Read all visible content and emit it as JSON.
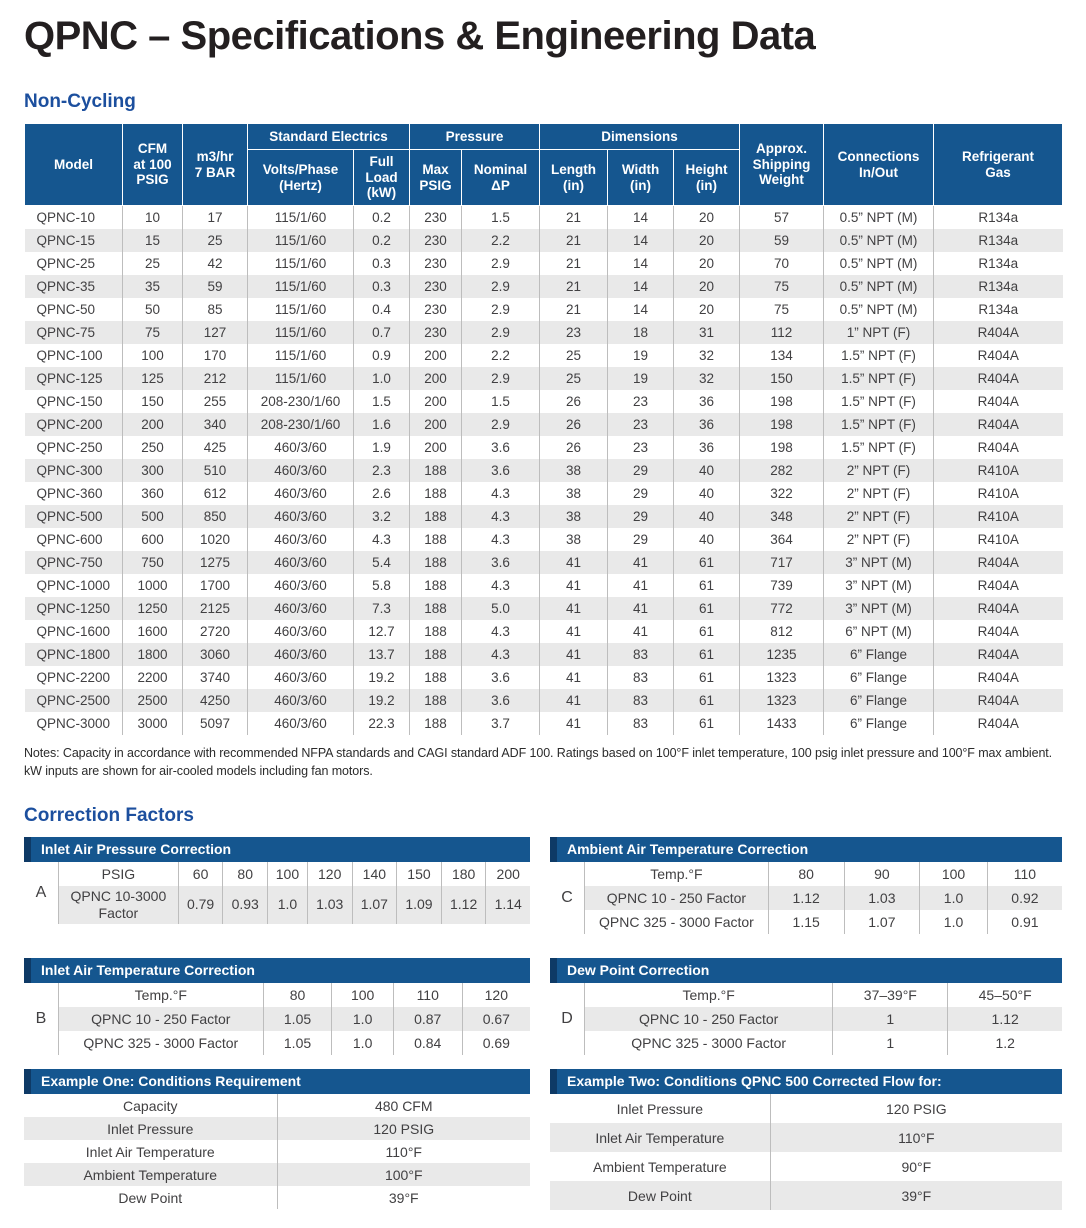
{
  "page": {
    "title": "QPNC – Specifications & Engineering Data",
    "non_cycling_heading": "Non-Cycling",
    "correction_heading": "Correction Factors",
    "notes_line1": "Notes: Capacity in accordance with recommended NFPA standards and CAGI standard ADF 100. Ratings based on 100°F inlet temperature, 100 psig inlet pressure and 100°F max ambient.",
    "notes_line2": "kW inputs are shown for air-cooled models including fan motors."
  },
  "colors": {
    "header_blue": "#15568F",
    "accent_dark_blue": "#0E3A66",
    "heading_blue": "#1C4F9E",
    "stripe_gray": "#E9E9E9",
    "title_color": "#231F20",
    "body_text": "#414042",
    "border_gray": "#BDBDBD"
  },
  "main_table": {
    "group_headers": {
      "electrics": "Standard Electrics",
      "pressure": "Pressure",
      "dimensions": "Dimensions"
    },
    "headers": {
      "model": "Model",
      "cfm": "CFM\nat 100\nPSIG",
      "m3hr": "m3/hr\n7 BAR",
      "volts": "Volts/Phase\n(Hertz)",
      "full_load": "Full\nLoad\n(kW)",
      "max_psig": "Max\nPSIG",
      "nominal_dp": "Nominal\nΔP",
      "length": "Length\n(in)",
      "width": "Width\n(in)",
      "height": "Height\n(in)",
      "shipping": "Approx.\nShipping\nWeight",
      "connections": "Connections\nIn/Out",
      "refrigerant": "Refrigerant\nGas"
    },
    "rows": [
      [
        "QPNC-10",
        "10",
        "17",
        "115/1/60",
        "0.2",
        "230",
        "1.5",
        "21",
        "14",
        "20",
        "57",
        "0.5” NPT (M)",
        "R134a"
      ],
      [
        "QPNC-15",
        "15",
        "25",
        "115/1/60",
        "0.2",
        "230",
        "2.2",
        "21",
        "14",
        "20",
        "59",
        "0.5” NPT (M)",
        "R134a"
      ],
      [
        "QPNC-25",
        "25",
        "42",
        "115/1/60",
        "0.3",
        "230",
        "2.9",
        "21",
        "14",
        "20",
        "70",
        "0.5” NPT (M)",
        "R134a"
      ],
      [
        "QPNC-35",
        "35",
        "59",
        "115/1/60",
        "0.3",
        "230",
        "2.9",
        "21",
        "14",
        "20",
        "75",
        "0.5” NPT (M)",
        "R134a"
      ],
      [
        "QPNC-50",
        "50",
        "85",
        "115/1/60",
        "0.4",
        "230",
        "2.9",
        "21",
        "14",
        "20",
        "75",
        "0.5” NPT (M)",
        "R134a"
      ],
      [
        "QPNC-75",
        "75",
        "127",
        "115/1/60",
        "0.7",
        "230",
        "2.9",
        "23",
        "18",
        "31",
        "112",
        "1” NPT (F)",
        "R404A"
      ],
      [
        "QPNC-100",
        "100",
        "170",
        "115/1/60",
        "0.9",
        "200",
        "2.2",
        "25",
        "19",
        "32",
        "134",
        "1.5” NPT (F)",
        "R404A"
      ],
      [
        "QPNC-125",
        "125",
        "212",
        "115/1/60",
        "1.0",
        "200",
        "2.9",
        "25",
        "19",
        "32",
        "150",
        "1.5” NPT (F)",
        "R404A"
      ],
      [
        "QPNC-150",
        "150",
        "255",
        "208-230/1/60",
        "1.5",
        "200",
        "1.5",
        "26",
        "23",
        "36",
        "198",
        "1.5” NPT (F)",
        "R404A"
      ],
      [
        "QPNC-200",
        "200",
        "340",
        "208-230/1/60",
        "1.6",
        "200",
        "2.9",
        "26",
        "23",
        "36",
        "198",
        "1.5” NPT (F)",
        "R404A"
      ],
      [
        "QPNC-250",
        "250",
        "425",
        "460/3/60",
        "1.9",
        "200",
        "3.6",
        "26",
        "23",
        "36",
        "198",
        "1.5” NPT (F)",
        "R404A"
      ],
      [
        "QPNC-300",
        "300",
        "510",
        "460/3/60",
        "2.3",
        "188",
        "3.6",
        "38",
        "29",
        "40",
        "282",
        "2” NPT (F)",
        "R410A"
      ],
      [
        "QPNC-360",
        "360",
        "612",
        "460/3/60",
        "2.6",
        "188",
        "4.3",
        "38",
        "29",
        "40",
        "322",
        "2” NPT (F)",
        "R410A"
      ],
      [
        "QPNC-500",
        "500",
        "850",
        "460/3/60",
        "3.2",
        "188",
        "4.3",
        "38",
        "29",
        "40",
        "348",
        "2” NPT (F)",
        "R410A"
      ],
      [
        "QPNC-600",
        "600",
        "1020",
        "460/3/60",
        "4.3",
        "188",
        "4.3",
        "38",
        "29",
        "40",
        "364",
        "2” NPT (F)",
        "R410A"
      ],
      [
        "QPNC-750",
        "750",
        "1275",
        "460/3/60",
        "5.4",
        "188",
        "3.6",
        "41",
        "41",
        "61",
        "717",
        "3” NPT (M)",
        "R404A"
      ],
      [
        "QPNC-1000",
        "1000",
        "1700",
        "460/3/60",
        "5.8",
        "188",
        "4.3",
        "41",
        "41",
        "61",
        "739",
        "3” NPT (M)",
        "R404A"
      ],
      [
        "QPNC-1250",
        "1250",
        "2125",
        "460/3/60",
        "7.3",
        "188",
        "5.0",
        "41",
        "41",
        "61",
        "772",
        "3” NPT (M)",
        "R404A"
      ],
      [
        "QPNC-1600",
        "1600",
        "2720",
        "460/3/60",
        "12.7",
        "188",
        "4.3",
        "41",
        "41",
        "61",
        "812",
        "6” NPT (M)",
        "R404A"
      ],
      [
        "QPNC-1800",
        "1800",
        "3060",
        "460/3/60",
        "13.7",
        "188",
        "4.3",
        "41",
        "83",
        "61",
        "1235",
        "6” Flange",
        "R404A"
      ],
      [
        "QPNC-2200",
        "2200",
        "3740",
        "460/3/60",
        "19.2",
        "188",
        "3.6",
        "41",
        "83",
        "61",
        "1323",
        "6” Flange",
        "R404A"
      ],
      [
        "QPNC-2500",
        "2500",
        "4250",
        "460/3/60",
        "19.2",
        "188",
        "3.6",
        "41",
        "83",
        "61",
        "1323",
        "6” Flange",
        "R404A"
      ],
      [
        "QPNC-3000",
        "3000",
        "5097",
        "460/3/60",
        "22.3",
        "188",
        "3.7",
        "41",
        "83",
        "61",
        "1433",
        "6” Flange",
        "R404A"
      ]
    ]
  },
  "correction_factors": {
    "tables": [
      {
        "letter": "A",
        "title": "Inlet Air Pressure Correction",
        "rows": [
          [
            "PSIG",
            "60",
            "80",
            "100",
            "120",
            "140",
            "150",
            "180",
            "200"
          ],
          [
            "QPNC 10-3000 Factor",
            "0.79",
            "0.93",
            "1.0",
            "1.03",
            "1.07",
            "1.09",
            "1.12",
            "1.14"
          ]
        ]
      },
      {
        "letter": "C",
        "title": "Ambient Air Temperature Correction",
        "rows": [
          [
            "Temp.°F",
            "80",
            "90",
            "100",
            "110"
          ],
          [
            "QPNC 10 - 250 Factor",
            "1.12",
            "1.03",
            "1.0",
            "0.92"
          ],
          [
            "QPNC 325 - 3000 Factor",
            "1.15",
            "1.07",
            "1.0",
            "0.91"
          ]
        ]
      },
      {
        "letter": "B",
        "title": "Inlet Air Temperature Correction",
        "rows": [
          [
            "Temp.°F",
            "80",
            "100",
            "110",
            "120"
          ],
          [
            "QPNC 10 - 250 Factor",
            "1.05",
            "1.0",
            "0.87",
            "0.67"
          ],
          [
            "QPNC 325 - 3000 Factor",
            "1.05",
            "1.0",
            "0.84",
            "0.69"
          ]
        ]
      },
      {
        "letter": "D",
        "title": "Dew Point Correction",
        "rows": [
          [
            "Temp.°F",
            "37–39°F",
            "45–50°F"
          ],
          [
            "QPNC 10 - 250 Factor",
            "1",
            "1.12"
          ],
          [
            "QPNC 325 - 3000 Factor",
            "1",
            "1.2"
          ]
        ]
      }
    ]
  },
  "examples": [
    {
      "title": "Example One: Conditions Requirement",
      "rows": [
        [
          "Capacity",
          "480 CFM"
        ],
        [
          "Inlet Pressure",
          "120 PSIG"
        ],
        [
          "Inlet Air Temperature",
          "110°F"
        ],
        [
          "Ambient Temperature",
          "100°F"
        ],
        [
          "Dew Point",
          "39°F"
        ]
      ]
    },
    {
      "title": "Example Two: Conditions QPNC 500 Corrected Flow for:",
      "rows": [
        [
          "Inlet Pressure",
          "120 PSIG"
        ],
        [
          "Inlet Air Temperature",
          "110°F"
        ],
        [
          "Ambient Temperature",
          "90°F"
        ],
        [
          "Dew Point",
          "39°F"
        ]
      ]
    }
  ]
}
